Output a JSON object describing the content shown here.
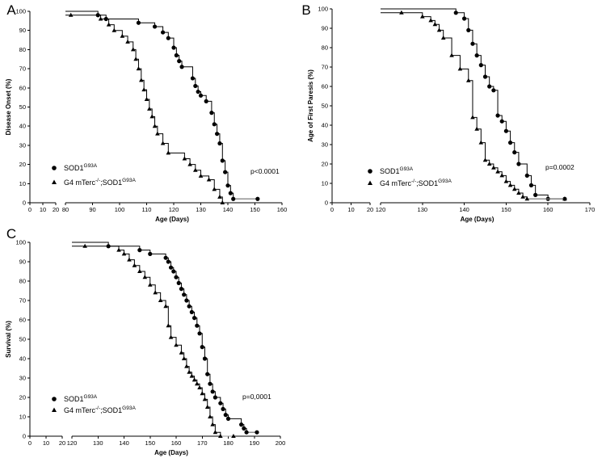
{
  "chart_data": [
    {
      "panel": "A",
      "type": "line",
      "subtype": "kaplan-meier",
      "ylabel": "Disease Onset (%)",
      "xlabel": "Age (Days)",
      "ylim": [
        0,
        100
      ],
      "yticks": [
        0,
        10,
        20,
        30,
        40,
        50,
        60,
        70,
        80,
        90,
        100
      ],
      "xticks_left": [
        0,
        10,
        20
      ],
      "xticks_right": [
        80,
        90,
        100,
        110,
        120,
        130,
        140,
        150,
        160
      ],
      "xlim_right": [
        80,
        160
      ],
      "pvalue": "p<0.0001",
      "legend": [
        {
          "marker": "circle",
          "label": "SOD1",
          "sup": "G93A"
        },
        {
          "marker": "triangle",
          "label": "G4 mTerc",
          "sup": "-/-",
          "label2": ";SOD1",
          "sup2": "G93A"
        }
      ],
      "series": [
        {
          "name": "SOD1 G93A",
          "marker": "circle",
          "start": [
            80,
            100
          ],
          "steps": [
            [
              92,
              98
            ],
            [
              95,
              96
            ],
            [
              107,
              94
            ],
            [
              113,
              92
            ],
            [
              116,
              89
            ],
            [
              118,
              86
            ],
            [
              120,
              81
            ],
            [
              121,
              77
            ],
            [
              122,
              74
            ],
            [
              123,
              71
            ],
            [
              127,
              65
            ],
            [
              128,
              61
            ],
            [
              129,
              58
            ],
            [
              130,
              56
            ],
            [
              132,
              53
            ],
            [
              134,
              47
            ],
            [
              135,
              41
            ],
            [
              136,
              36
            ],
            [
              137,
              31
            ],
            [
              138,
              22
            ],
            [
              139,
              16
            ],
            [
              140,
              9
            ],
            [
              141,
              5
            ],
            [
              142,
              2
            ]
          ],
          "end": 151,
          "censored_at": 151
        },
        {
          "name": "G4 mTerc-/-;SOD1 G93A",
          "marker": "triangle",
          "start": [
            80,
            98
          ],
          "steps": [
            [
              93,
              96
            ],
            [
              96,
              93
            ],
            [
              98,
              90
            ],
            [
              101,
              87
            ],
            [
              103,
              84
            ],
            [
              105,
              80
            ],
            [
              106,
              75
            ],
            [
              107,
              70
            ],
            [
              108,
              64
            ],
            [
              109,
              59
            ],
            [
              110,
              54
            ],
            [
              111,
              49
            ],
            [
              112,
              45
            ],
            [
              113,
              40
            ],
            [
              114,
              36
            ],
            [
              116,
              31
            ],
            [
              118,
              26
            ],
            [
              124,
              23
            ],
            [
              126,
              20
            ],
            [
              128,
              17
            ],
            [
              130,
              14
            ],
            [
              133,
              12
            ],
            [
              135,
              7
            ],
            [
              137,
              3
            ],
            [
              138,
              0
            ]
          ],
          "end": 138
        }
      ]
    },
    {
      "panel": "B",
      "type": "line",
      "subtype": "kaplan-meier",
      "ylabel": "Age of First Paresis  (%)",
      "xlabel": "Age (Days)",
      "ylim": [
        0,
        100
      ],
      "yticks": [
        0,
        10,
        20,
        30,
        40,
        50,
        60,
        70,
        80,
        90,
        100
      ],
      "xticks_left": [
        0,
        10,
        20
      ],
      "xticks_right": [
        120,
        130,
        140,
        150,
        160,
        170
      ],
      "xlim_right": [
        120,
        170
      ],
      "pvalue": "p=0.0002",
      "legend": [
        {
          "marker": "circle",
          "label": "SOD1",
          "sup": "G93A"
        },
        {
          "marker": "triangle",
          "label": "G4 mTerc",
          "sup": "-/-",
          "label2": ";SOD1",
          "sup2": "G93A"
        }
      ],
      "series": [
        {
          "name": "SOD1 G93A",
          "marker": "circle",
          "start": [
            120,
            100
          ],
          "steps": [
            [
              138,
              98
            ],
            [
              140,
              95
            ],
            [
              141,
              89
            ],
            [
              142,
              82
            ],
            [
              143,
              76
            ],
            [
              144,
              71
            ],
            [
              145,
              65
            ],
            [
              146,
              60
            ],
            [
              147,
              58
            ],
            [
              148,
              45
            ],
            [
              149,
              42
            ],
            [
              150,
              37
            ],
            [
              151,
              31
            ],
            [
              152,
              26
            ],
            [
              153,
              20
            ],
            [
              155,
              14
            ],
            [
              156,
              9
            ],
            [
              157,
              4
            ],
            [
              160,
              2
            ]
          ],
          "end": 164,
          "censored_at": 164
        },
        {
          "name": "G4 mTerc-/-;SOD1 G93A",
          "marker": "triangle",
          "start": [
            120,
            98
          ],
          "steps": [
            [
              130,
              96
            ],
            [
              132,
              94
            ],
            [
              133,
              92
            ],
            [
              134,
              89
            ],
            [
              135,
              85
            ],
            [
              137,
              76
            ],
            [
              139,
              69
            ],
            [
              141,
              63
            ],
            [
              142,
              44
            ],
            [
              143,
              38
            ],
            [
              144,
              31
            ],
            [
              145,
              22
            ],
            [
              146,
              20
            ],
            [
              147,
              18
            ],
            [
              148,
              16
            ],
            [
              149,
              14
            ],
            [
              150,
              11
            ],
            [
              151,
              9
            ],
            [
              152,
              7
            ],
            [
              153,
              5
            ],
            [
              154,
              3
            ],
            [
              155,
              2
            ]
          ],
          "end": 164,
          "censored_at": 164
        }
      ]
    },
    {
      "panel": "C",
      "type": "line",
      "subtype": "kaplan-meier",
      "ylabel": "Survival  (%)",
      "xlabel": "Age (Days)",
      "ylim": [
        0,
        100
      ],
      "yticks": [
        0,
        10,
        20,
        30,
        40,
        50,
        60,
        70,
        80,
        90,
        100
      ],
      "xticks_left": [
        0,
        10,
        20
      ],
      "xticks_right": [
        120,
        130,
        140,
        150,
        160,
        170,
        180,
        190,
        200
      ],
      "xlim_right": [
        120,
        200
      ],
      "pvalue": "p=0,0001",
      "legend": [
        {
          "marker": "circle",
          "label": "SOD1",
          "sup": "G93A"
        },
        {
          "marker": "triangle",
          "label": "G4 mTerc",
          "sup": "-/-",
          "label2": ";SOD1",
          "sup2": "G93A"
        }
      ],
      "series": [
        {
          "name": "SOD1 G93A",
          "marker": "circle",
          "start": [
            120,
            100
          ],
          "steps": [
            [
              134,
              98
            ],
            [
              146,
              96
            ],
            [
              150,
              94
            ],
            [
              156,
              92
            ],
            [
              157,
              90
            ],
            [
              158,
              87
            ],
            [
              159,
              85
            ],
            [
              160,
              82
            ],
            [
              161,
              79
            ],
            [
              162,
              76
            ],
            [
              163,
              73
            ],
            [
              164,
              70
            ],
            [
              165,
              67
            ],
            [
              166,
              64
            ],
            [
              167,
              61
            ],
            [
              168,
              57
            ],
            [
              169,
              53
            ],
            [
              170,
              46
            ],
            [
              171,
              40
            ],
            [
              172,
              32
            ],
            [
              173,
              27
            ],
            [
              174,
              23
            ],
            [
              175,
              20
            ],
            [
              177,
              17
            ],
            [
              178,
              14
            ],
            [
              179,
              11
            ],
            [
              180,
              9
            ],
            [
              185,
              6
            ],
            [
              186,
              4
            ],
            [
              187,
              2
            ]
          ],
          "end": 191,
          "censored_at": 191
        },
        {
          "name": "G4 mTerc-/-;SOD1 G93A",
          "marker": "triangle",
          "start": [
            120,
            98
          ],
          "steps": [
            [
              138,
              96
            ],
            [
              140,
              94
            ],
            [
              142,
              91
            ],
            [
              144,
              88
            ],
            [
              146,
              85
            ],
            [
              148,
              82
            ],
            [
              150,
              78
            ],
            [
              152,
              74
            ],
            [
              154,
              70
            ],
            [
              156,
              67
            ],
            [
              157,
              57
            ],
            [
              158,
              51
            ],
            [
              160,
              47
            ],
            [
              162,
              43
            ],
            [
              163,
              40
            ],
            [
              164,
              36
            ],
            [
              165,
              33
            ],
            [
              166,
              31
            ],
            [
              167,
              29
            ],
            [
              168,
              27
            ],
            [
              169,
              25
            ],
            [
              170,
              22
            ],
            [
              171,
              19
            ],
            [
              172,
              15
            ],
            [
              173,
              10
            ],
            [
              174,
              6
            ],
            [
              175,
              2
            ],
            [
              177,
              0
            ]
          ],
          "end": 182,
          "censored_at": 182
        }
      ]
    }
  ]
}
